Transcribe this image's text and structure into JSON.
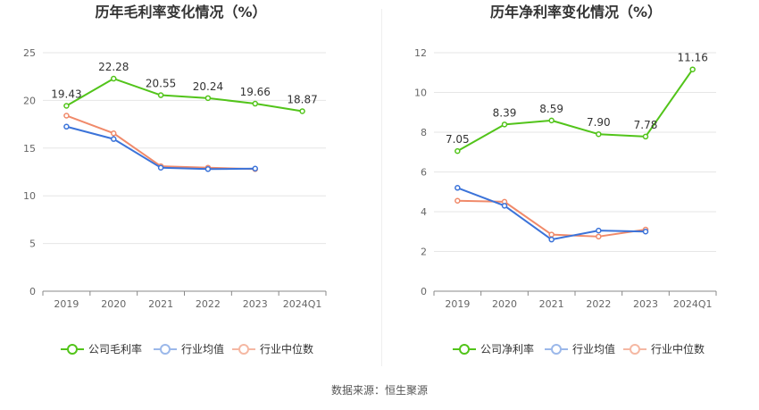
{
  "chart_data": [
    {
      "type": "line",
      "title": "历年毛利率变化情况（%）",
      "categories": [
        "2019",
        "2020",
        "2021",
        "2022",
        "2023",
        "2024Q1"
      ],
      "ylim": [
        0,
        25
      ],
      "yticks": [
        0,
        5,
        10,
        15,
        20,
        25
      ],
      "grid": true,
      "legend_position": "bottom",
      "series": [
        {
          "name": "公司毛利率",
          "color": "#52c41a",
          "values": [
            19.43,
            22.28,
            20.55,
            20.24,
            19.66,
            18.87
          ],
          "labels": [
            "19.43",
            "22.28",
            "20.55",
            "20.24",
            "19.66",
            "18.87"
          ]
        },
        {
          "name": "行业均值",
          "color": "#3b73d9",
          "values": [
            17.25,
            15.95,
            12.95,
            12.8,
            12.85,
            null
          ]
        },
        {
          "name": "行业中位数",
          "color": "#f08a6a",
          "values": [
            18.4,
            16.55,
            13.1,
            12.95,
            12.8,
            null
          ]
        }
      ]
    },
    {
      "type": "line",
      "title": "历年净利率变化情况（%）",
      "categories": [
        "2019",
        "2020",
        "2021",
        "2022",
        "2023",
        "2024Q1"
      ],
      "ylim": [
        0,
        12
      ],
      "yticks": [
        0,
        2,
        4,
        6,
        8,
        10,
        12
      ],
      "grid": true,
      "legend_position": "bottom",
      "series": [
        {
          "name": "公司净利率",
          "color": "#52c41a",
          "values": [
            7.05,
            8.39,
            8.59,
            7.9,
            7.78,
            11.16
          ],
          "labels": [
            "7.05",
            "8.39",
            "8.59",
            "7.90",
            "7.78",
            "11.16"
          ]
        },
        {
          "name": "行业均值",
          "color": "#3b73d9",
          "values": [
            5.2,
            4.3,
            2.6,
            3.05,
            3.0,
            null
          ]
        },
        {
          "name": "行业中位数",
          "color": "#f08a6a",
          "values": [
            4.55,
            4.5,
            2.85,
            2.75,
            3.1,
            null
          ]
        }
      ]
    }
  ],
  "source_text": "数据来源：恒生聚源"
}
